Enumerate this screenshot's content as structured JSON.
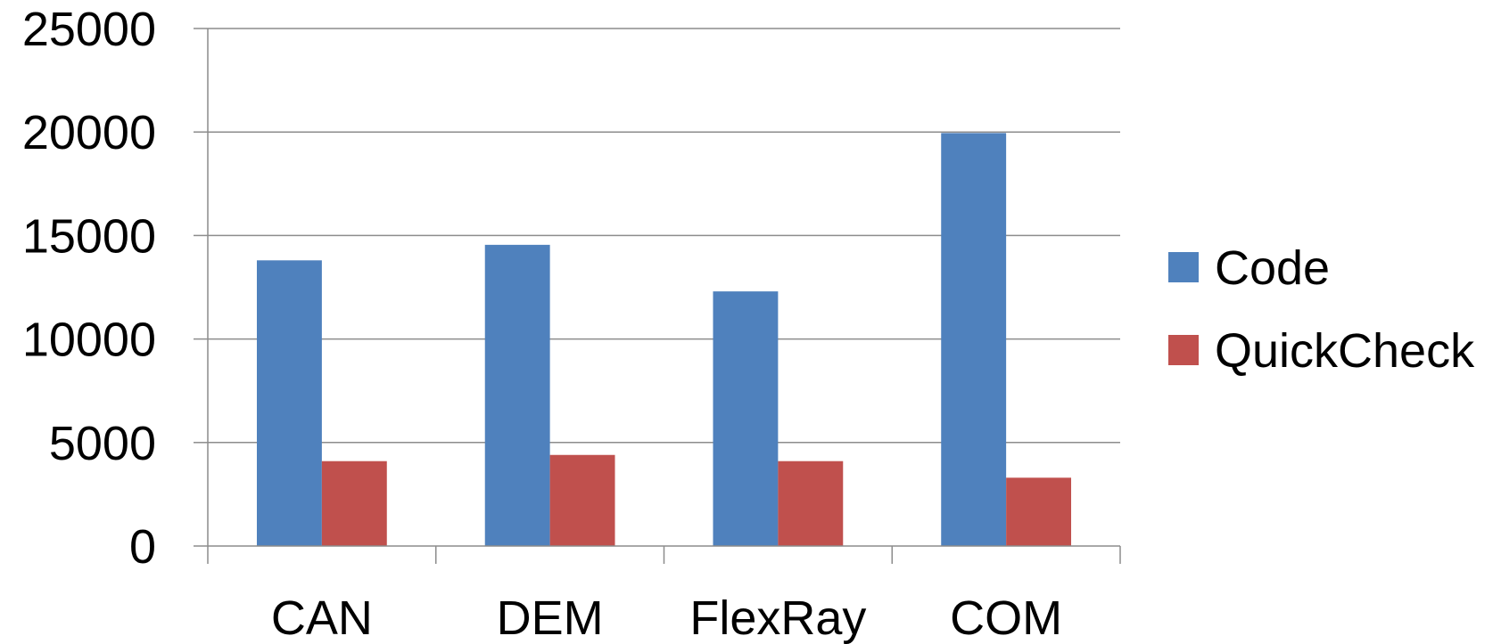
{
  "chart_data": {
    "type": "bar",
    "title": "",
    "xlabel": "",
    "ylabel": "",
    "categories": [
      "CAN",
      "DEM",
      "FlexRay",
      "COM"
    ],
    "series": [
      {
        "name": "Code",
        "values": [
          13800,
          14550,
          12300,
          19950
        ],
        "color": "#4F81BD"
      },
      {
        "name": "QuickCheck",
        "values": [
          4100,
          4400,
          4100,
          3300
        ],
        "color": "#C0504D"
      }
    ],
    "ylim": [
      0,
      25000
    ],
    "yticks": [
      "0",
      "5000",
      "10000",
      "15000",
      "20000",
      "25000"
    ],
    "grid": true,
    "legend_position": "right"
  }
}
